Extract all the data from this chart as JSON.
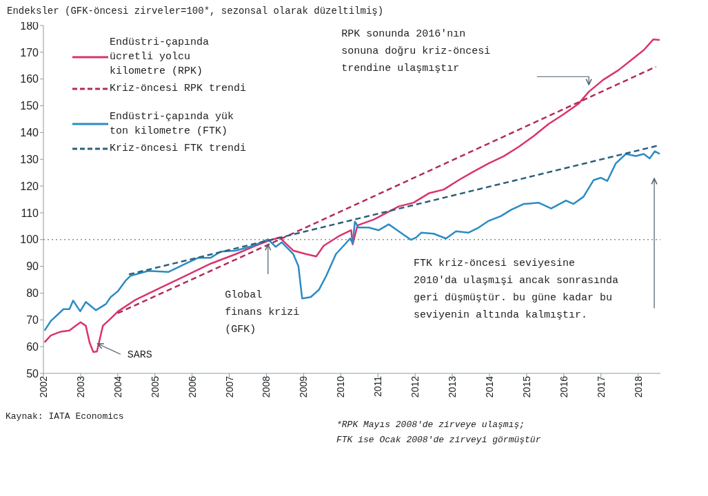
{
  "chart_data": {
    "type": "line",
    "title": "Endeksler (GFK-öncesi zirveler=100*, sezonsal olarak düzeltilmiş)",
    "xlim": [
      2002,
      2018.6
    ],
    "xticks": [
      2002,
      2003,
      2004,
      2005,
      2006,
      2007,
      2008,
      2009,
      2010,
      2011,
      2012,
      2013,
      2014,
      2015,
      2016,
      2017,
      2018
    ],
    "ylim": [
      50,
      180
    ],
    "yticks": [
      50,
      60,
      70,
      80,
      90,
      100,
      110,
      120,
      130,
      140,
      150,
      160,
      170,
      180
    ],
    "legend": "top left",
    "marker": "none",
    "ref_lines": [
      {
        "axis": "y",
        "value": 100,
        "color": "#8a8f94",
        "line_style": "dotted"
      }
    ],
    "series": [
      {
        "name": "Endüstri-çapında ücretli yolcu kilometre (RPK)",
        "color": "#d9336b",
        "line_style": "solid",
        "x": [
          2002.03,
          2002.2,
          2002.47,
          2002.7,
          2002.87,
          2003.0,
          2003.14,
          2003.24,
          2003.34,
          2003.44,
          2003.6,
          2003.81,
          2004.01,
          2004.49,
          2005.16,
          2005.83,
          2006.5,
          2007.18,
          2007.71,
          2008.04,
          2008.35,
          2008.72,
          2009.06,
          2009.34,
          2009.54,
          2009.95,
          2010.28,
          2010.32,
          2010.45,
          2010.89,
          2011.56,
          2011.96,
          2012.37,
          2012.77,
          2013.17,
          2013.57,
          2013.98,
          2014.39,
          2014.79,
          2015.19,
          2015.59,
          2015.99,
          2016.4,
          2016.67,
          2017.06,
          2017.47,
          2017.87,
          2018.15,
          2018.41,
          2018.58
        ],
        "values": [
          61.6,
          64.2,
          65.6,
          66,
          67.8,
          69.1,
          67.8,
          61.6,
          58,
          58.2,
          67.8,
          70.5,
          73.2,
          77.6,
          82.1,
          86.5,
          91,
          94.6,
          97.7,
          99.5,
          100.8,
          95.9,
          94.6,
          93.7,
          97.7,
          101.3,
          103.5,
          98.2,
          105.3,
          107.5,
          112.4,
          113.8,
          117.3,
          118.7,
          122.2,
          125.4,
          128.5,
          131.2,
          134.7,
          138.7,
          143.2,
          146.8,
          150.8,
          155.2,
          159.7,
          163.3,
          167.7,
          170.8,
          174.8,
          174.6
        ]
      },
      {
        "name": "Kriz-öncesi RPK trendi",
        "color": "#b22a5c",
        "line_style": "dashed",
        "x": [
          2004.0,
          2008.35,
          2018.48
        ],
        "values": [
          72.5,
          100,
          164.6
        ]
      },
      {
        "name": "Endüstri-çapında yük ton kilometre (FTK)",
        "color": "#2a8bc4",
        "line_style": "solid",
        "x": [
          2002.03,
          2002.2,
          2002.54,
          2002.7,
          2002.8,
          2002.99,
          2003.14,
          2003.41,
          2003.68,
          2003.81,
          2004.01,
          2004.22,
          2004.35,
          2004.82,
          2005.36,
          2005.83,
          2006.17,
          2006.5,
          2006.77,
          2007.18,
          2007.65,
          2008.04,
          2008.25,
          2008.41,
          2008.72,
          2008.86,
          2008.96,
          2009.19,
          2009.41,
          2009.61,
          2009.87,
          2010.11,
          2010.25,
          2010.32,
          2010.38,
          2010.48,
          2010.75,
          2011.02,
          2011.29,
          2011.56,
          2011.89,
          2012.03,
          2012.17,
          2012.5,
          2012.83,
          2013.1,
          2013.44,
          2013.71,
          2013.98,
          2014.31,
          2014.58,
          2014.92,
          2015.32,
          2015.66,
          2016.06,
          2016.26,
          2016.53,
          2016.8,
          2017.0,
          2017.17,
          2017.4,
          2017.67,
          2017.94,
          2018.15,
          2018.31,
          2018.45,
          2018.58
        ],
        "values": [
          66,
          69.6,
          74,
          74,
          77.2,
          73.2,
          76.7,
          73.6,
          75.9,
          78.5,
          80.8,
          84.8,
          86.5,
          88.3,
          87.9,
          91,
          93.2,
          93.2,
          95.5,
          95.9,
          97.7,
          100.1,
          97.3,
          99,
          94.6,
          90.1,
          78,
          78.5,
          81.2,
          86.5,
          94.6,
          98.2,
          100.4,
          98.6,
          106.7,
          104.5,
          104.5,
          103.5,
          105.7,
          103.1,
          99.9,
          100.8,
          102.6,
          102.2,
          100.4,
          103.1,
          102.6,
          104.5,
          107,
          108.8,
          111.1,
          113.3,
          113.8,
          111.6,
          114.6,
          113.3,
          116,
          122.2,
          123.1,
          121.9,
          128.5,
          132,
          131.2,
          132,
          130.3,
          133,
          132
        ]
      },
      {
        "name": "Kriz-öncesi FTK trendi",
        "color": "#2d5f7a",
        "line_style": "dashed",
        "x": [
          2004.3,
          2018.5
        ],
        "values": [
          87,
          135
        ]
      }
    ],
    "annotations": [
      "Global finans krizi (GFK)",
      "SARS",
      "RPK sonunda 2016'nın sonuna doğru kriz-öncesi trendine ulaşmıştır",
      "FTK kriz-öncesi seviyesine 2010'da ulaşmışi ancak sonrasında geri düşmüştür. bu güne kadar bu seviyenin altında kalmıştır.",
      "Kaynak: IATA Economics",
      "*RPK Mayıs 2008'de zirveye ulaşmış; FTK ise Ocak 2008'de zirveyi görmüştür"
    ]
  }
}
